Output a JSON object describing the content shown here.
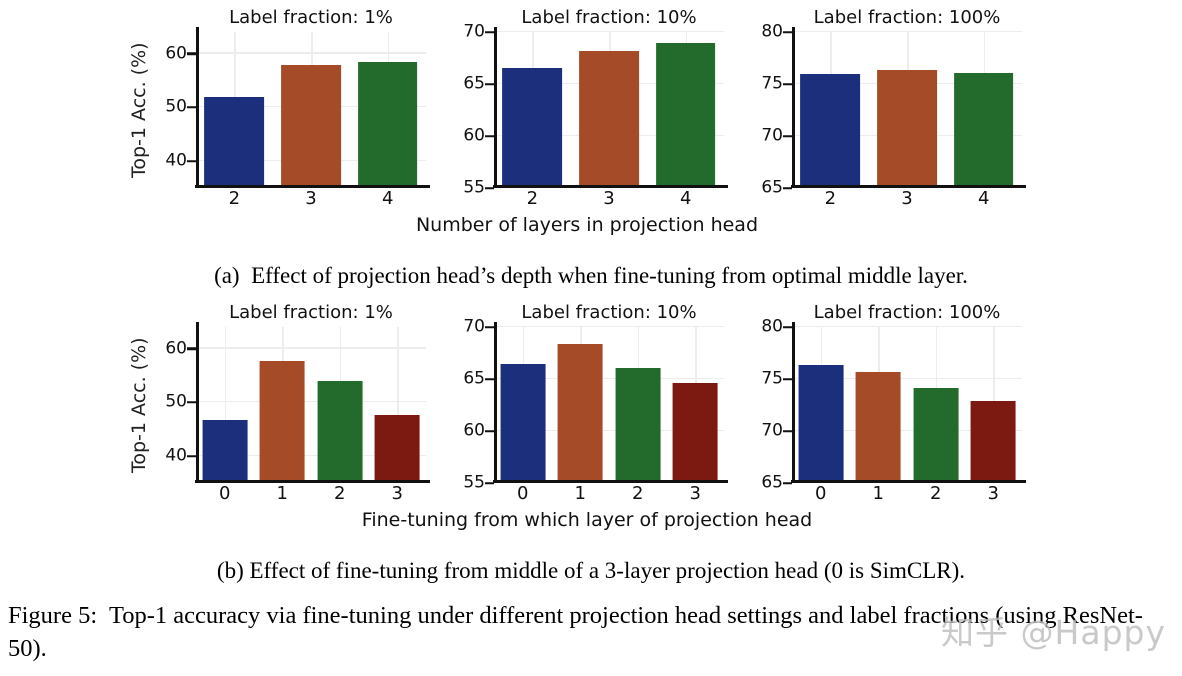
{
  "figure": {
    "caption_a": "(a)  Effect of projection head’s depth when fine-tuning from optimal middle layer.",
    "caption_b": "(b) Effect of fine-tuning from middle of a 3-layer projection head (0 is SimCLR).",
    "figure_caption": "Figure 5:  Top-1 accuracy via fine-tuning under different projection head settings and label fractions (using ResNet-50).",
    "watermark": "知乎 @Happy"
  },
  "axes": {
    "row_a_xlabel": "Number of layers in projection head",
    "row_b_xlabel": "Fine-tuning from which layer of projection head",
    "ylabel": "Top-1 Acc. (%)"
  },
  "palette": {
    "bar_colors": [
      "#1c2f7c",
      "#a64b27",
      "#236b2c",
      "#7c1a12"
    ],
    "axis_color": "#111111",
    "grid_color": "#ededed"
  },
  "chart_data": [
    {
      "id": "a-1pct",
      "row": "a",
      "type": "bar",
      "title": "Label fraction: 1%",
      "categories": [
        "2",
        "3",
        "4"
      ],
      "values": [
        52.0,
        57.8,
        58.4
      ],
      "ylim": [
        35,
        64
      ],
      "yticks": [
        40,
        50,
        60
      ],
      "grid": true,
      "legend": "none"
    },
    {
      "id": "a-10pct",
      "row": "a",
      "type": "bar",
      "title": "Label fraction: 10%",
      "categories": [
        "2",
        "3",
        "4"
      ],
      "values": [
        66.5,
        68.2,
        68.9
      ],
      "ylim": [
        55,
        70
      ],
      "yticks": [
        55,
        60,
        65,
        70
      ],
      "grid": true,
      "legend": "none"
    },
    {
      "id": "a-100pct",
      "row": "a",
      "type": "bar",
      "title": "Label fraction: 100%",
      "categories": [
        "2",
        "3",
        "4"
      ],
      "values": [
        76.0,
        76.3,
        76.1
      ],
      "ylim": [
        65,
        80
      ],
      "yticks": [
        65,
        70,
        75,
        80
      ],
      "grid": true,
      "legend": "none"
    },
    {
      "id": "b-1pct",
      "row": "b",
      "type": "bar",
      "title": "Label fraction: 1%",
      "categories": [
        "0",
        "1",
        "2",
        "3"
      ],
      "values": [
        46.7,
        57.7,
        53.9,
        47.7
      ],
      "ylim": [
        35,
        64
      ],
      "yticks": [
        40,
        50,
        60
      ],
      "grid": true,
      "legend": "none"
    },
    {
      "id": "b-10pct",
      "row": "b",
      "type": "bar",
      "title": "Label fraction: 10%",
      "categories": [
        "0",
        "1",
        "2",
        "3"
      ],
      "values": [
        66.4,
        68.4,
        66.1,
        64.6
      ],
      "ylim": [
        55,
        70
      ],
      "yticks": [
        55,
        60,
        65,
        70
      ],
      "grid": true,
      "legend": "none"
    },
    {
      "id": "b-100pct",
      "row": "b",
      "type": "bar",
      "title": "Label fraction: 100%",
      "categories": [
        "0",
        "1",
        "2",
        "3"
      ],
      "values": [
        76.3,
        75.7,
        74.1,
        72.9
      ],
      "ylim": [
        65,
        80
      ],
      "yticks": [
        65,
        70,
        75,
        80
      ],
      "grid": true,
      "legend": "none"
    }
  ]
}
